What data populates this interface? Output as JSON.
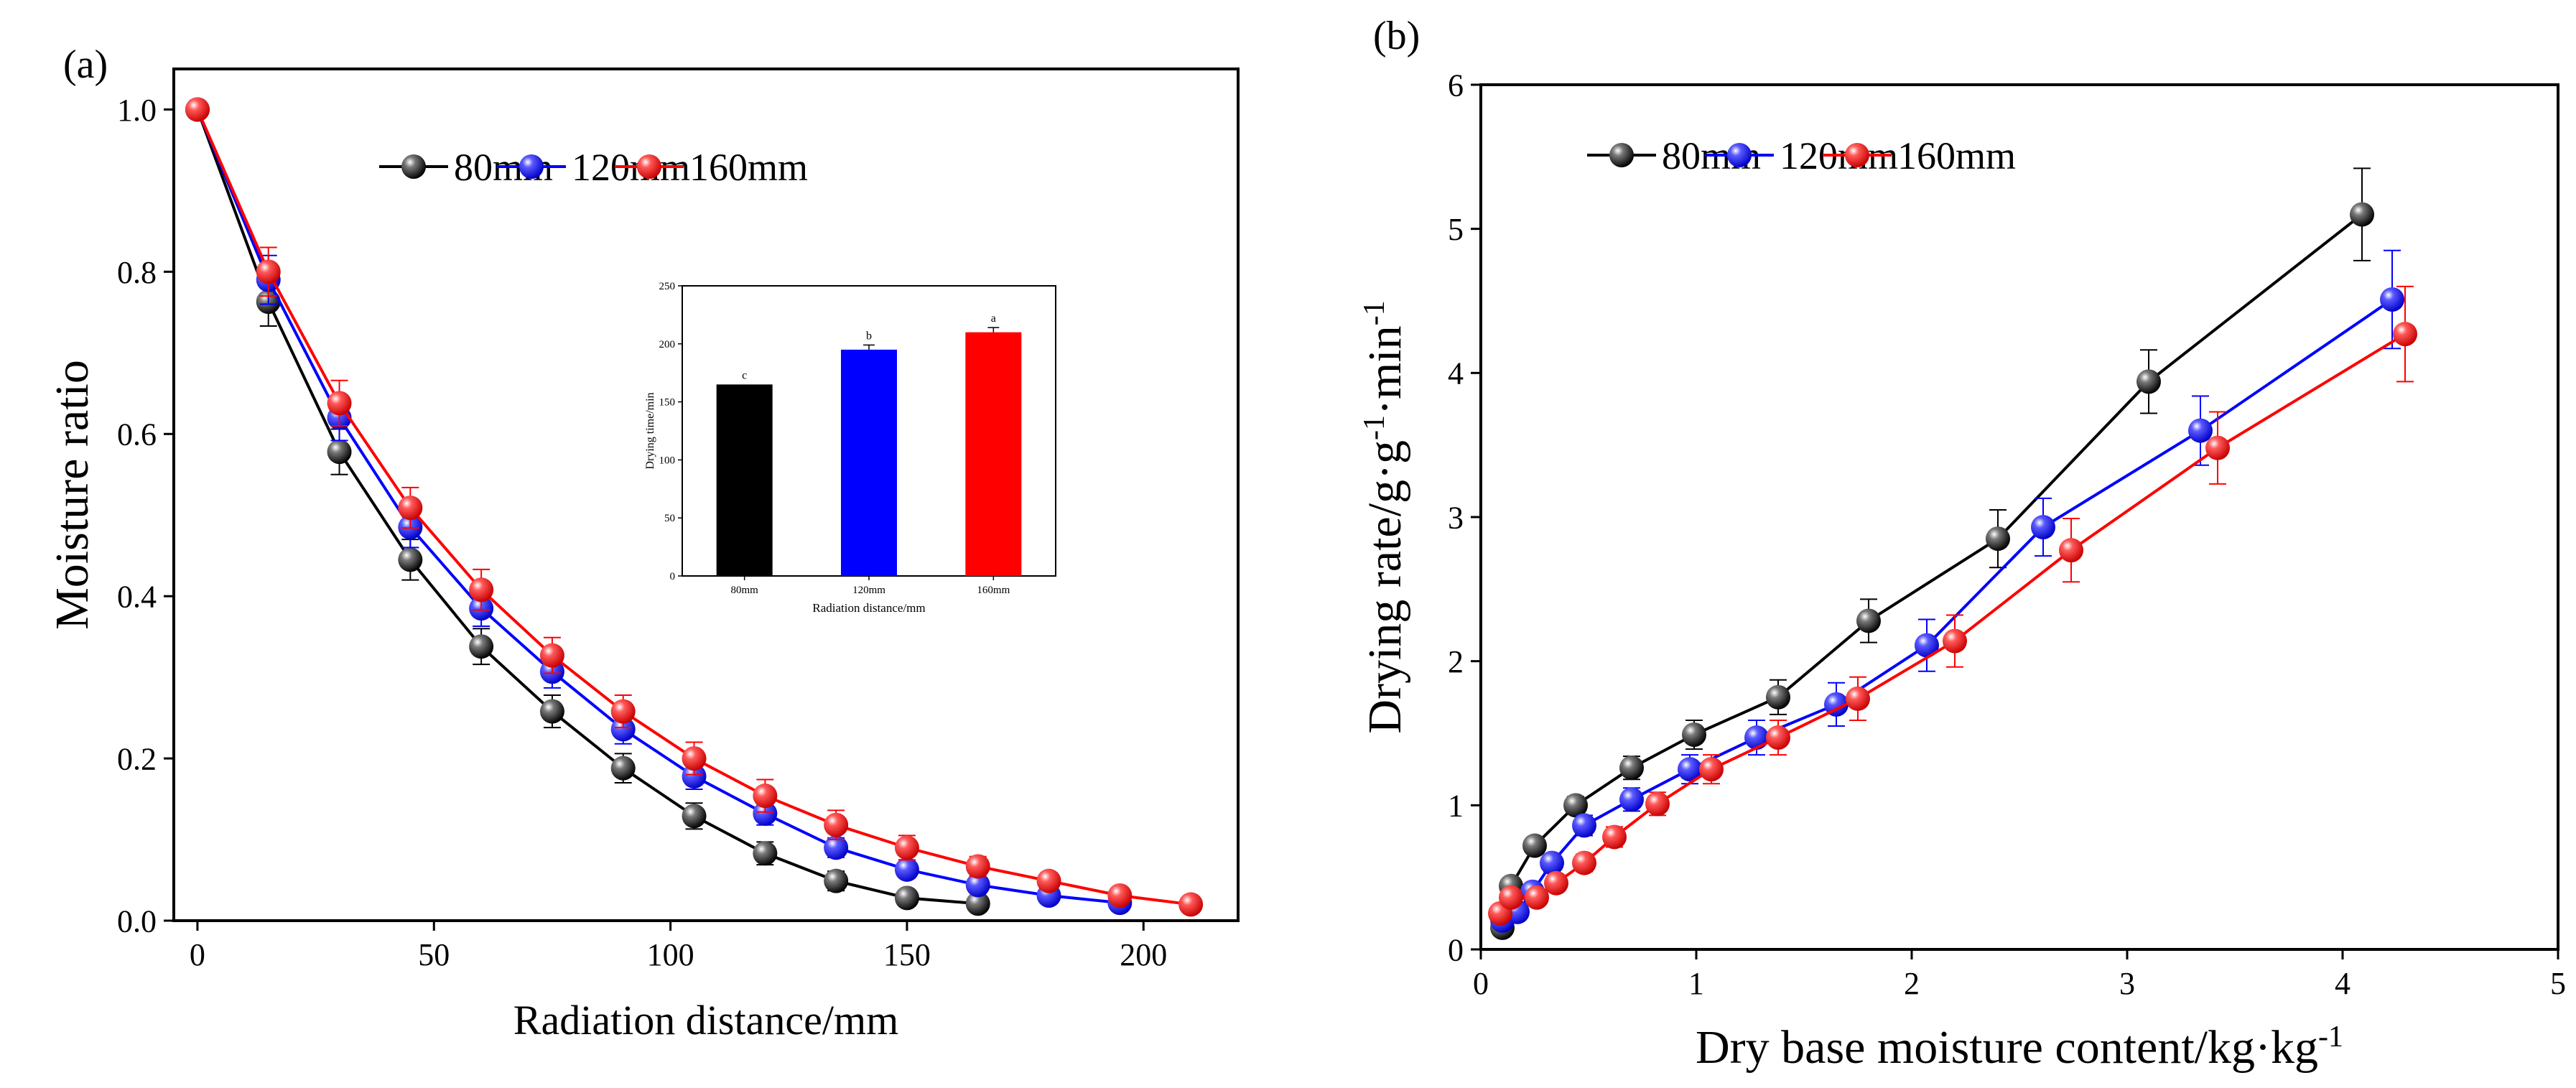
{
  "figure": {
    "panels": [
      "(a)",
      "(b)"
    ]
  },
  "colors": {
    "80mm": "#000000",
    "120mm": "#0000ff",
    "160mm": "#ff0000",
    "axis": "#000000"
  },
  "chart_data": [
    {
      "id": "a",
      "type": "line",
      "panel_label": "(a)",
      "title": "",
      "xlabel": "Radiation distance/mm",
      "ylabel": "Moisture ratio",
      "xlim": [
        -5,
        220
      ],
      "ylim": [
        0,
        1.05
      ],
      "xticks": [
        0,
        50,
        100,
        150,
        200
      ],
      "xtick_labels": [
        "0",
        "50",
        "100",
        "150",
        "200"
      ],
      "yticks": [
        0,
        0.2,
        0.4,
        0.6,
        0.8,
        1.0
      ],
      "ytick_labels": [
        "0.0",
        "0.2",
        "0.4",
        "0.6",
        "0.8",
        "1.0"
      ],
      "legend": "top-center",
      "series": [
        {
          "name": "80mm",
          "color": "#000000",
          "x": [
            0,
            15,
            30,
            45,
            60,
            75,
            90,
            105,
            120,
            135,
            150,
            165
          ],
          "y": [
            1.0,
            0.763,
            0.578,
            0.445,
            0.338,
            0.258,
            0.188,
            0.129,
            0.083,
            0.049,
            0.028,
            0.021
          ],
          "err": [
            0,
            0.03,
            0.028,
            0.025,
            0.022,
            0.02,
            0.018,
            0.016,
            0.014,
            0.012,
            0.01,
            0.008
          ]
        },
        {
          "name": "120mm",
          "color": "#0000ff",
          "x": [
            0,
            15,
            30,
            45,
            60,
            75,
            90,
            105,
            120,
            135,
            150,
            165,
            180,
            195
          ],
          "y": [
            1.0,
            0.79,
            0.62,
            0.485,
            0.385,
            0.307,
            0.236,
            0.178,
            0.132,
            0.09,
            0.063,
            0.044,
            0.031,
            0.022
          ],
          "err": [
            0,
            0.03,
            0.028,
            0.025,
            0.022,
            0.02,
            0.018,
            0.016,
            0.014,
            0.012,
            0.01,
            0.008,
            0.008,
            0.008
          ]
        },
        {
          "name": "160mm",
          "color": "#ff0000",
          "x": [
            0,
            15,
            30,
            45,
            60,
            75,
            90,
            105,
            120,
            135,
            150,
            165,
            180,
            195,
            210
          ],
          "y": [
            1.0,
            0.8,
            0.638,
            0.509,
            0.408,
            0.327,
            0.258,
            0.2,
            0.154,
            0.118,
            0.09,
            0.067,
            0.049,
            0.031,
            0.02
          ],
          "err": [
            0,
            0.03,
            0.028,
            0.025,
            0.025,
            0.022,
            0.02,
            0.02,
            0.02,
            0.018,
            0.015,
            0.012,
            0.01,
            0.01,
            0.008
          ]
        }
      ],
      "inset": {
        "type": "bar",
        "ylabel": "Drying time/min",
        "xlabel": "Radiation distance/mm",
        "ylim": [
          0,
          250
        ],
        "yticks": [
          0,
          50,
          100,
          150,
          200,
          250
        ],
        "ytick_labels": [
          "0",
          "50",
          "100",
          "150",
          "200",
          "250"
        ],
        "categories": [
          "80mm",
          "120mm",
          "160mm"
        ],
        "values": [
          165,
          195,
          210
        ],
        "err": [
          0,
          4,
          4
        ],
        "letters": [
          "c",
          "b",
          "a"
        ],
        "colors": [
          "#000000",
          "#0000ff",
          "#ff0000"
        ]
      }
    },
    {
      "id": "b",
      "type": "line",
      "panel_label": "(b)",
      "title": "",
      "xlabel": "Dry base moisture content/kg·kg",
      "xlabel_sup": "-1",
      "ylabel": "Drying rate/g·g",
      "ylabel_sup1": "-1",
      "ylabel_mid": "·min",
      "ylabel_sup2": "-1",
      "xlim": [
        0,
        5
      ],
      "ylim": [
        0,
        6
      ],
      "xticks": [
        0,
        1,
        2,
        3,
        4,
        5
      ],
      "xtick_labels": [
        "0",
        "1",
        "2",
        "3",
        "4",
        "5"
      ],
      "yticks": [
        0,
        1,
        2,
        3,
        4,
        5,
        6
      ],
      "ytick_labels": [
        "0",
        "1",
        "2",
        "3",
        "4",
        "5",
        "6"
      ],
      "legend": "top-left",
      "series": [
        {
          "name": "80mm",
          "color": "#000000",
          "x": [
            0.1,
            0.14,
            0.25,
            0.44,
            0.7,
            0.99,
            1.38,
            1.8,
            2.4,
            3.1,
            4.09
          ],
          "y": [
            0.15,
            0.44,
            0.72,
            1.0,
            1.26,
            1.49,
            1.75,
            2.28,
            2.85,
            3.94,
            5.1
          ],
          "err": [
            0,
            0.04,
            0.05,
            0.06,
            0.08,
            0.1,
            0.12,
            0.15,
            0.2,
            0.22,
            0.32
          ]
        },
        {
          "name": "120mm",
          "color": "#0000ff",
          "x": [
            0.1,
            0.17,
            0.24,
            0.33,
            0.48,
            0.7,
            0.97,
            1.28,
            1.65,
            2.07,
            2.61,
            3.34,
            4.23
          ],
          "y": [
            0.2,
            0.26,
            0.4,
            0.6,
            0.86,
            1.04,
            1.25,
            1.47,
            1.7,
            2.11,
            2.93,
            3.6,
            4.51
          ],
          "err": [
            0,
            0.04,
            0.05,
            0.06,
            0.07,
            0.08,
            0.1,
            0.12,
            0.15,
            0.18,
            0.2,
            0.24,
            0.34
          ]
        },
        {
          "name": "160mm",
          "color": "#ff0000",
          "x": [
            0.09,
            0.14,
            0.26,
            0.35,
            0.48,
            0.62,
            0.82,
            1.07,
            1.38,
            1.75,
            2.2,
            2.74,
            3.42,
            4.29
          ],
          "y": [
            0.25,
            0.36,
            0.36,
            0.46,
            0.6,
            0.78,
            1.01,
            1.25,
            1.47,
            1.74,
            2.14,
            2.77,
            3.48,
            4.27
          ],
          "err": [
            0,
            0.04,
            0.05,
            0.05,
            0.06,
            0.07,
            0.08,
            0.1,
            0.12,
            0.15,
            0.18,
            0.22,
            0.25,
            0.33
          ]
        }
      ]
    }
  ]
}
